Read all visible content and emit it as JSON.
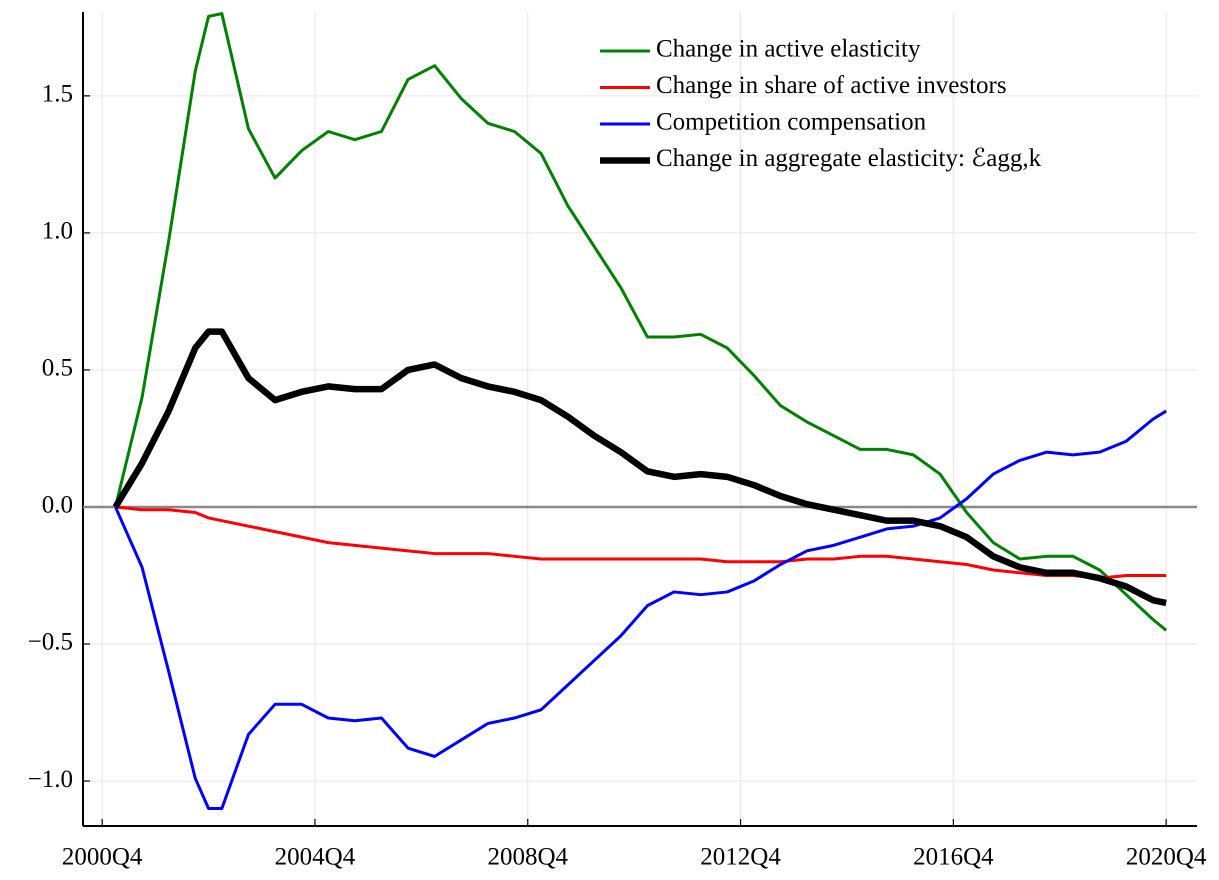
{
  "chart_data": {
    "type": "line",
    "x": [
      2001,
      2001.5,
      2002,
      2002.5,
      2002.75,
      2003,
      2003.5,
      2004,
      2004.5,
      2005,
      2005.5,
      2006,
      2006.5,
      2007,
      2007.5,
      2008,
      2008.5,
      2009,
      2009.5,
      2010,
      2010.5,
      2011,
      2011.5,
      2012,
      2012.5,
      2013,
      2013.5,
      2014,
      2014.5,
      2015,
      2015.5,
      2016,
      2016.5,
      2017,
      2017.5,
      2018,
      2018.5,
      2019,
      2019.5,
      2020,
      2020.5,
      2020.75
    ],
    "series": [
      {
        "name": "Change in active elasticity",
        "color": "#008000",
        "linewidth": 3,
        "values": [
          0,
          0.4,
          0.97,
          1.59,
          1.79,
          1.8,
          1.38,
          1.2,
          1.3,
          1.37,
          1.34,
          1.37,
          1.56,
          1.61,
          1.49,
          1.4,
          1.37,
          1.29,
          1.1,
          0.95,
          0.8,
          0.62,
          0.62,
          0.63,
          0.58,
          0.48,
          0.37,
          0.31,
          0.26,
          0.21,
          0.21,
          0.19,
          0.12,
          -0.02,
          -0.13,
          -0.19,
          -0.18,
          -0.18,
          -0.23,
          -0.32,
          -0.41,
          -0.45
        ]
      },
      {
        "name": "Change in share of active investors",
        "color": "#ff0000",
        "linewidth": 3,
        "values": [
          0,
          -0.01,
          -0.01,
          -0.02,
          -0.04,
          -0.05,
          -0.07,
          -0.09,
          -0.11,
          -0.13,
          -0.14,
          -0.15,
          -0.16,
          -0.17,
          -0.17,
          -0.17,
          -0.18,
          -0.19,
          -0.19,
          -0.19,
          -0.19,
          -0.19,
          -0.19,
          -0.19,
          -0.2,
          -0.2,
          -0.2,
          -0.19,
          -0.19,
          -0.18,
          -0.18,
          -0.19,
          -0.2,
          -0.21,
          -0.23,
          -0.24,
          -0.25,
          -0.25,
          -0.26,
          -0.25,
          -0.25,
          -0.25
        ]
      },
      {
        "name": "Competition compensation",
        "color": "#0000ff",
        "linewidth": 3,
        "values": [
          0,
          -0.22,
          -0.6,
          -0.99,
          -1.1,
          -1.1,
          -0.83,
          -0.72,
          -0.72,
          -0.77,
          -0.78,
          -0.77,
          -0.88,
          -0.91,
          -0.85,
          -0.79,
          -0.77,
          -0.74,
          -0.65,
          -0.56,
          -0.47,
          -0.36,
          -0.31,
          -0.32,
          -0.31,
          -0.27,
          -0.21,
          -0.16,
          -0.14,
          -0.11,
          -0.08,
          -0.07,
          -0.04,
          0.03,
          0.12,
          0.17,
          0.2,
          0.19,
          0.2,
          0.24,
          0.32,
          0.35
        ]
      },
      {
        "name": "Change in aggregate elasticity: ℰagg,k",
        "color": "#000000",
        "linewidth": 6.5,
        "values": [
          0,
          0.16,
          0.35,
          0.58,
          0.64,
          0.64,
          0.47,
          0.39,
          0.42,
          0.44,
          0.43,
          0.43,
          0.5,
          0.52,
          0.47,
          0.44,
          0.42,
          0.39,
          0.33,
          0.26,
          0.2,
          0.13,
          0.11,
          0.12,
          0.11,
          0.08,
          0.04,
          0.01,
          -0.01,
          -0.03,
          -0.05,
          -0.05,
          -0.07,
          -0.11,
          -0.18,
          -0.22,
          -0.24,
          -0.24,
          -0.26,
          -0.29,
          -0.34,
          -0.35
        ]
      }
    ],
    "xlim": [
      2000.39,
      2021.33
    ],
    "xticks": [
      {
        "value": 2000.75,
        "label": "2000Q4"
      },
      {
        "value": 2004.75,
        "label": "2004Q4"
      },
      {
        "value": 2008.75,
        "label": "2008Q4"
      },
      {
        "value": 2012.75,
        "label": "2012Q4"
      },
      {
        "value": 2016.75,
        "label": "2016Q4"
      },
      {
        "value": 2020.75,
        "label": "2020Q4"
      }
    ],
    "ylim": [
      -1.164,
      1.806
    ],
    "yticks": [
      {
        "value": -1,
        "label": "−1.0"
      },
      {
        "value": -0.5,
        "label": "−0.5"
      },
      {
        "value": 0,
        "label": "0.0"
      },
      0.5,
      {
        "value": 1,
        "label": "1.0"
      },
      1.5
    ],
    "reference_line": {
      "value": 0,
      "color": "#888888"
    },
    "grid": true,
    "legend": "top-right"
  }
}
